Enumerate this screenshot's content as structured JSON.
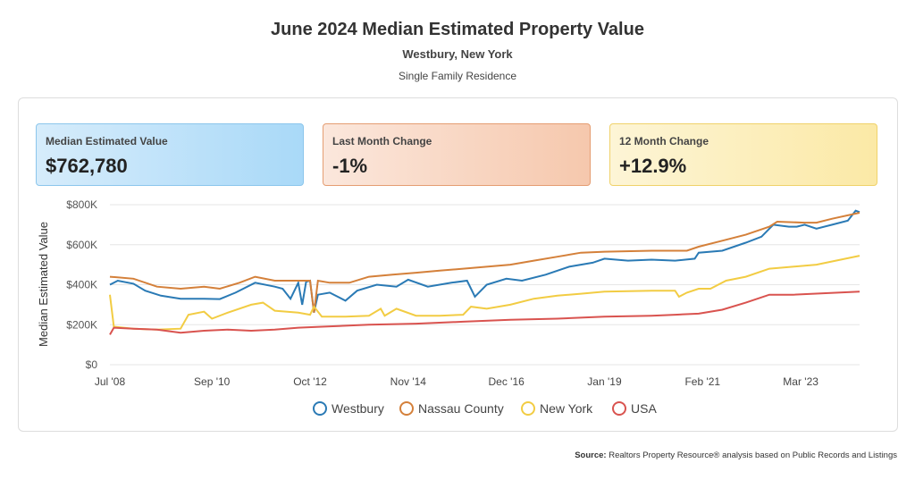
{
  "header": {
    "title": "June 2024 Median Estimated Property Value",
    "location": "Westbury, New York",
    "property_type": "Single Family Residence"
  },
  "cards": [
    {
      "label": "Median Estimated Value",
      "value": "$762,780"
    },
    {
      "label": "Last Month Change",
      "value": "-1%"
    },
    {
      "label": "12 Month Change",
      "value": "+12.9%"
    }
  ],
  "source": {
    "label": "Source:",
    "text": "Realtors Property Resource® analysis based on Public Records and Listings"
  },
  "chart_data": {
    "type": "line",
    "ylabel": "Median Estimated Value",
    "ylim": [
      0,
      800000
    ],
    "grid": true,
    "legend_position": "bottom",
    "yticks": [
      "$0",
      "$200K",
      "$400K",
      "$600K",
      "$800K"
    ],
    "xticks": [
      {
        "label": "Jul '08",
        "x": "2008-07"
      },
      {
        "label": "Sep '10",
        "x": "2010-09"
      },
      {
        "label": "Oct '12",
        "x": "2012-10"
      },
      {
        "label": "Nov '14",
        "x": "2014-11"
      },
      {
        "label": "Dec '16",
        "x": "2016-12"
      },
      {
        "label": "Jan '19",
        "x": "2019-01"
      },
      {
        "label": "Feb '21",
        "x": "2021-02"
      },
      {
        "label": "Mar '23",
        "x": "2023-03"
      }
    ],
    "xlim": [
      "2008-07",
      "2024-06"
    ],
    "series": [
      {
        "name": "Westbury",
        "color": "#2a7ab5",
        "points": [
          [
            "2008-07",
            400000
          ],
          [
            "2008-09",
            420000
          ],
          [
            "2009-01",
            405000
          ],
          [
            "2009-04",
            370000
          ],
          [
            "2009-08",
            345000
          ],
          [
            "2010-01",
            330000
          ],
          [
            "2010-07",
            330000
          ],
          [
            "2010-11",
            328000
          ],
          [
            "2011-03",
            360000
          ],
          [
            "2011-08",
            410000
          ],
          [
            "2012-01",
            390000
          ],
          [
            "2012-03",
            380000
          ],
          [
            "2012-05",
            330000
          ],
          [
            "2012-07",
            410000
          ],
          [
            "2012-08",
            300000
          ],
          [
            "2012-09",
            415000
          ],
          [
            "2012-10",
            420000
          ],
          [
            "2012-11",
            260000
          ],
          [
            "2012-12",
            350000
          ],
          [
            "2013-03",
            360000
          ],
          [
            "2013-07",
            320000
          ],
          [
            "2013-10",
            370000
          ],
          [
            "2014-03",
            400000
          ],
          [
            "2014-08",
            390000
          ],
          [
            "2014-11",
            425000
          ],
          [
            "2015-04",
            390000
          ],
          [
            "2015-10",
            410000
          ],
          [
            "2016-02",
            420000
          ],
          [
            "2016-04",
            340000
          ],
          [
            "2016-07",
            400000
          ],
          [
            "2016-12",
            430000
          ],
          [
            "2017-04",
            420000
          ],
          [
            "2017-10",
            450000
          ],
          [
            "2018-04",
            490000
          ],
          [
            "2018-10",
            510000
          ],
          [
            "2019-01",
            530000
          ],
          [
            "2019-07",
            520000
          ],
          [
            "2020-01",
            525000
          ],
          [
            "2020-07",
            520000
          ],
          [
            "2020-12",
            530000
          ],
          [
            "2021-01",
            560000
          ],
          [
            "2021-07",
            570000
          ],
          [
            "2022-01",
            610000
          ],
          [
            "2022-05",
            640000
          ],
          [
            "2022-08",
            700000
          ],
          [
            "2022-12",
            690000
          ],
          [
            "2023-02",
            690000
          ],
          [
            "2023-04",
            700000
          ],
          [
            "2023-07",
            680000
          ],
          [
            "2023-11",
            700000
          ],
          [
            "2024-03",
            720000
          ],
          [
            "2024-05",
            770000
          ],
          [
            "2024-06",
            762780
          ]
        ]
      },
      {
        "name": "Nassau County",
        "color": "#d4803a",
        "points": [
          [
            "2008-07",
            440000
          ],
          [
            "2009-01",
            430000
          ],
          [
            "2009-07",
            390000
          ],
          [
            "2010-01",
            380000
          ],
          [
            "2010-07",
            390000
          ],
          [
            "2010-11",
            380000
          ],
          [
            "2011-04",
            410000
          ],
          [
            "2011-08",
            440000
          ],
          [
            "2012-01",
            420000
          ],
          [
            "2012-07",
            420000
          ],
          [
            "2012-10",
            420000
          ],
          [
            "2012-11",
            260000
          ],
          [
            "2012-12",
            420000
          ],
          [
            "2013-03",
            410000
          ],
          [
            "2013-08",
            410000
          ],
          [
            "2014-01",
            440000
          ],
          [
            "2014-07",
            450000
          ],
          [
            "2015-01",
            460000
          ],
          [
            "2015-07",
            470000
          ],
          [
            "2016-01",
            480000
          ],
          [
            "2016-07",
            490000
          ],
          [
            "2017-01",
            500000
          ],
          [
            "2017-07",
            520000
          ],
          [
            "2018-01",
            540000
          ],
          [
            "2018-07",
            560000
          ],
          [
            "2019-01",
            565000
          ],
          [
            "2020-01",
            570000
          ],
          [
            "2020-10",
            570000
          ],
          [
            "2021-01",
            590000
          ],
          [
            "2021-07",
            620000
          ],
          [
            "2022-01",
            650000
          ],
          [
            "2022-07",
            690000
          ],
          [
            "2022-09",
            715000
          ],
          [
            "2023-04",
            710000
          ],
          [
            "2023-07",
            710000
          ],
          [
            "2023-11",
            730000
          ],
          [
            "2024-06",
            760000
          ]
        ]
      },
      {
        "name": "New York",
        "color": "#f2cc43",
        "points": [
          [
            "2008-07",
            350000
          ],
          [
            "2008-08",
            190000
          ],
          [
            "2009-01",
            180000
          ],
          [
            "2009-07",
            175000
          ],
          [
            "2010-01",
            180000
          ],
          [
            "2010-03",
            250000
          ],
          [
            "2010-07",
            265000
          ],
          [
            "2010-09",
            230000
          ],
          [
            "2011-01",
            260000
          ],
          [
            "2011-07",
            300000
          ],
          [
            "2011-10",
            310000
          ],
          [
            "2012-01",
            270000
          ],
          [
            "2012-07",
            260000
          ],
          [
            "2012-10",
            250000
          ],
          [
            "2012-11",
            290000
          ],
          [
            "2013-01",
            240000
          ],
          [
            "2013-07",
            240000
          ],
          [
            "2014-01",
            245000
          ],
          [
            "2014-04",
            280000
          ],
          [
            "2014-05",
            245000
          ],
          [
            "2014-08",
            280000
          ],
          [
            "2015-01",
            245000
          ],
          [
            "2015-07",
            245000
          ],
          [
            "2016-01",
            250000
          ],
          [
            "2016-03",
            290000
          ],
          [
            "2016-07",
            280000
          ],
          [
            "2017-01",
            300000
          ],
          [
            "2017-07",
            330000
          ],
          [
            "2018-01",
            345000
          ],
          [
            "2018-07",
            355000
          ],
          [
            "2019-01",
            365000
          ],
          [
            "2020-01",
            370000
          ],
          [
            "2020-07",
            370000
          ],
          [
            "2020-08",
            340000
          ],
          [
            "2020-10",
            360000
          ],
          [
            "2021-01",
            380000
          ],
          [
            "2021-04",
            380000
          ],
          [
            "2021-08",
            420000
          ],
          [
            "2022-01",
            440000
          ],
          [
            "2022-07",
            480000
          ],
          [
            "2023-01",
            490000
          ],
          [
            "2023-07",
            500000
          ],
          [
            "2024-06",
            545000
          ]
        ]
      },
      {
        "name": "USA",
        "color": "#d9534f",
        "points": [
          [
            "2008-07",
            150000
          ],
          [
            "2008-08",
            185000
          ],
          [
            "2009-01",
            180000
          ],
          [
            "2009-07",
            175000
          ],
          [
            "2010-01",
            160000
          ],
          [
            "2010-07",
            170000
          ],
          [
            "2011-01",
            175000
          ],
          [
            "2011-07",
            170000
          ],
          [
            "2012-01",
            175000
          ],
          [
            "2012-07",
            185000
          ],
          [
            "2013-01",
            190000
          ],
          [
            "2014-01",
            200000
          ],
          [
            "2015-01",
            205000
          ],
          [
            "2016-01",
            215000
          ],
          [
            "2017-01",
            225000
          ],
          [
            "2018-01",
            230000
          ],
          [
            "2019-01",
            240000
          ],
          [
            "2020-01",
            245000
          ],
          [
            "2020-07",
            250000
          ],
          [
            "2021-01",
            255000
          ],
          [
            "2021-07",
            275000
          ],
          [
            "2022-01",
            310000
          ],
          [
            "2022-07",
            350000
          ],
          [
            "2023-01",
            350000
          ],
          [
            "2024-06",
            365000
          ]
        ]
      }
    ]
  }
}
